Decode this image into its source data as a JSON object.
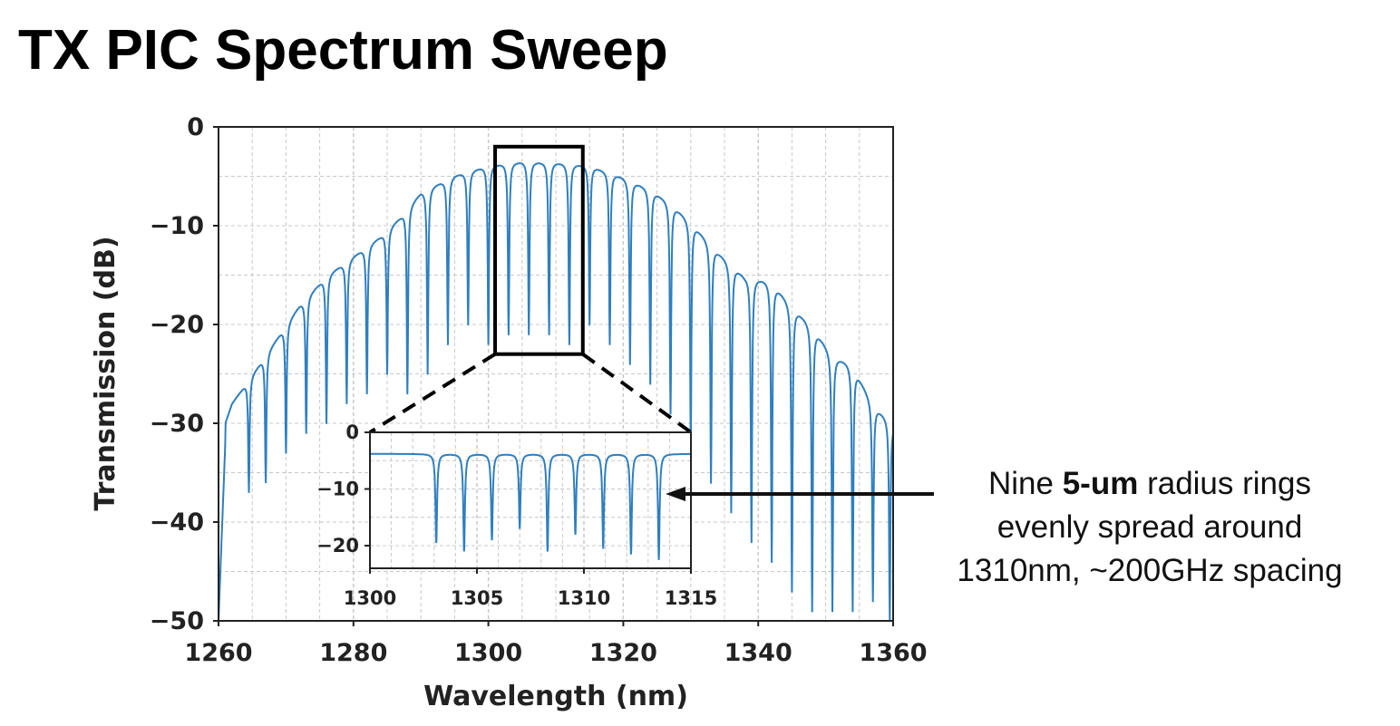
{
  "slide": {
    "title": "TX PIC Spectrum Sweep"
  },
  "annotation": {
    "line1_prefix": "Nine ",
    "line1_bold": "5-um",
    "line1_suffix": " radius rings",
    "line2": "evenly spread around",
    "line3": "1310nm, ~200GHz spacing"
  },
  "colors": {
    "series": "#2f7fbf",
    "grid": "#c8c8c8",
    "axis": "#222222",
    "annotation_arrow": "#111111"
  },
  "chart_data": [
    {
      "id": "main",
      "type": "line",
      "title": "",
      "xlabel": "Wavelength (nm)",
      "ylabel": "Transmission (dB)",
      "xlim": [
        1260,
        1360
      ],
      "ylim": [
        -50,
        0
      ],
      "xticks": [
        1260,
        1280,
        1300,
        1320,
        1340,
        1360
      ],
      "yticks": [
        0,
        -10,
        -20,
        -30,
        -40,
        -50
      ],
      "grid": true,
      "envelope": {
        "x": [
          1260,
          1262,
          1265,
          1268,
          1272,
          1276,
          1280,
          1284,
          1287,
          1290,
          1295,
          1300,
          1305,
          1310,
          1315,
          1320,
          1324,
          1327,
          1330,
          1334,
          1338,
          1342,
          1345,
          1348,
          1351,
          1354,
          1357,
          1360
        ],
        "y": [
          -32,
          -28,
          -25,
          -22,
          -18,
          -15,
          -13,
          -11,
          -9,
          -6.5,
          -4.8,
          -3.8,
          -3.4,
          -3.5,
          -3.8,
          -5,
          -6.2,
          -7.6,
          -9.5,
          -12.5,
          -15,
          -15.5,
          -18,
          -20,
          -23,
          -24,
          -28,
          -30
        ]
      },
      "dips": [
        {
          "x": 1264.5,
          "y": -37
        },
        {
          "x": 1267,
          "y": -36
        },
        {
          "x": 1270,
          "y": -33
        },
        {
          "x": 1273,
          "y": -31
        },
        {
          "x": 1276,
          "y": -30
        },
        {
          "x": 1279,
          "y": -28
        },
        {
          "x": 1282,
          "y": -27
        },
        {
          "x": 1285,
          "y": -25
        },
        {
          "x": 1288,
          "y": -27
        },
        {
          "x": 1291,
          "y": -25
        },
        {
          "x": 1294,
          "y": -22
        },
        {
          "x": 1297,
          "y": -20
        },
        {
          "x": 1300,
          "y": -22
        },
        {
          "x": 1303,
          "y": -21
        },
        {
          "x": 1306,
          "y": -21
        },
        {
          "x": 1309,
          "y": -21
        },
        {
          "x": 1312,
          "y": -22
        },
        {
          "x": 1315,
          "y": -20
        },
        {
          "x": 1318,
          "y": -22
        },
        {
          "x": 1321,
          "y": -24
        },
        {
          "x": 1324,
          "y": -26
        },
        {
          "x": 1327,
          "y": -29
        },
        {
          "x": 1330,
          "y": -32
        },
        {
          "x": 1333,
          "y": -36
        },
        {
          "x": 1336,
          "y": -39
        },
        {
          "x": 1339,
          "y": -42
        },
        {
          "x": 1342,
          "y": -44
        },
        {
          "x": 1345,
          "y": -47
        },
        {
          "x": 1348,
          "y": -49
        },
        {
          "x": 1351,
          "y": -49
        },
        {
          "x": 1354,
          "y": -49
        },
        {
          "x": 1357,
          "y": -48
        },
        {
          "x": 1359.5,
          "y": -50
        }
      ],
      "zoom_box": {
        "x": [
          1301,
          1314
        ],
        "y": [
          -23,
          -2
        ]
      }
    },
    {
      "id": "inset",
      "type": "line",
      "title": "",
      "xlabel": "",
      "ylabel": "",
      "xlim": [
        1300,
        1315
      ],
      "ylim": [
        -24,
        0
      ],
      "xticks": [
        1300,
        1305,
        1310,
        1315
      ],
      "yticks": [
        0,
        -10,
        -20
      ],
      "grid": true,
      "baseline": -3.8,
      "dips": [
        {
          "x": 1303.1,
          "y": -19.5
        },
        {
          "x": 1304.4,
          "y": -21
        },
        {
          "x": 1305.7,
          "y": -19
        },
        {
          "x": 1307.0,
          "y": -17
        },
        {
          "x": 1308.3,
          "y": -21
        },
        {
          "x": 1309.6,
          "y": -18
        },
        {
          "x": 1310.9,
          "y": -20.5
        },
        {
          "x": 1312.2,
          "y": -21.5
        },
        {
          "x": 1313.5,
          "y": -22.5
        }
      ]
    }
  ]
}
